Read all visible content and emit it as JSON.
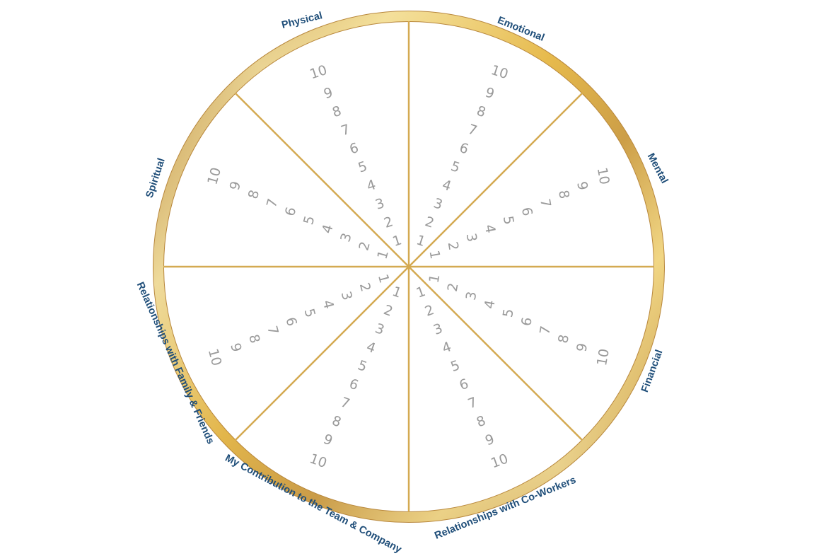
{
  "colors": {
    "ring_gold": "#E6B94A",
    "ring_light": "#F6E6A8",
    "ring_dark": "#B8873C",
    "spoke": "#D4AA52",
    "label": "#1F4E79",
    "number": "#9A9A9A",
    "background": "#FFFFFF"
  },
  "scale": [
    "1",
    "2",
    "3",
    "4",
    "5",
    "6",
    "7",
    "8",
    "9",
    "10"
  ],
  "segments": [
    {
      "label": "Physical"
    },
    {
      "label": "Emotional"
    },
    {
      "label": "Mental"
    },
    {
      "label": "Financial"
    },
    {
      "label": "Relationships  with Co-Workers"
    },
    {
      "label": "My Contribution to the Team & Company"
    },
    {
      "label": "Relationships with Family & Friends"
    },
    {
      "label": "Spiritual"
    }
  ]
}
